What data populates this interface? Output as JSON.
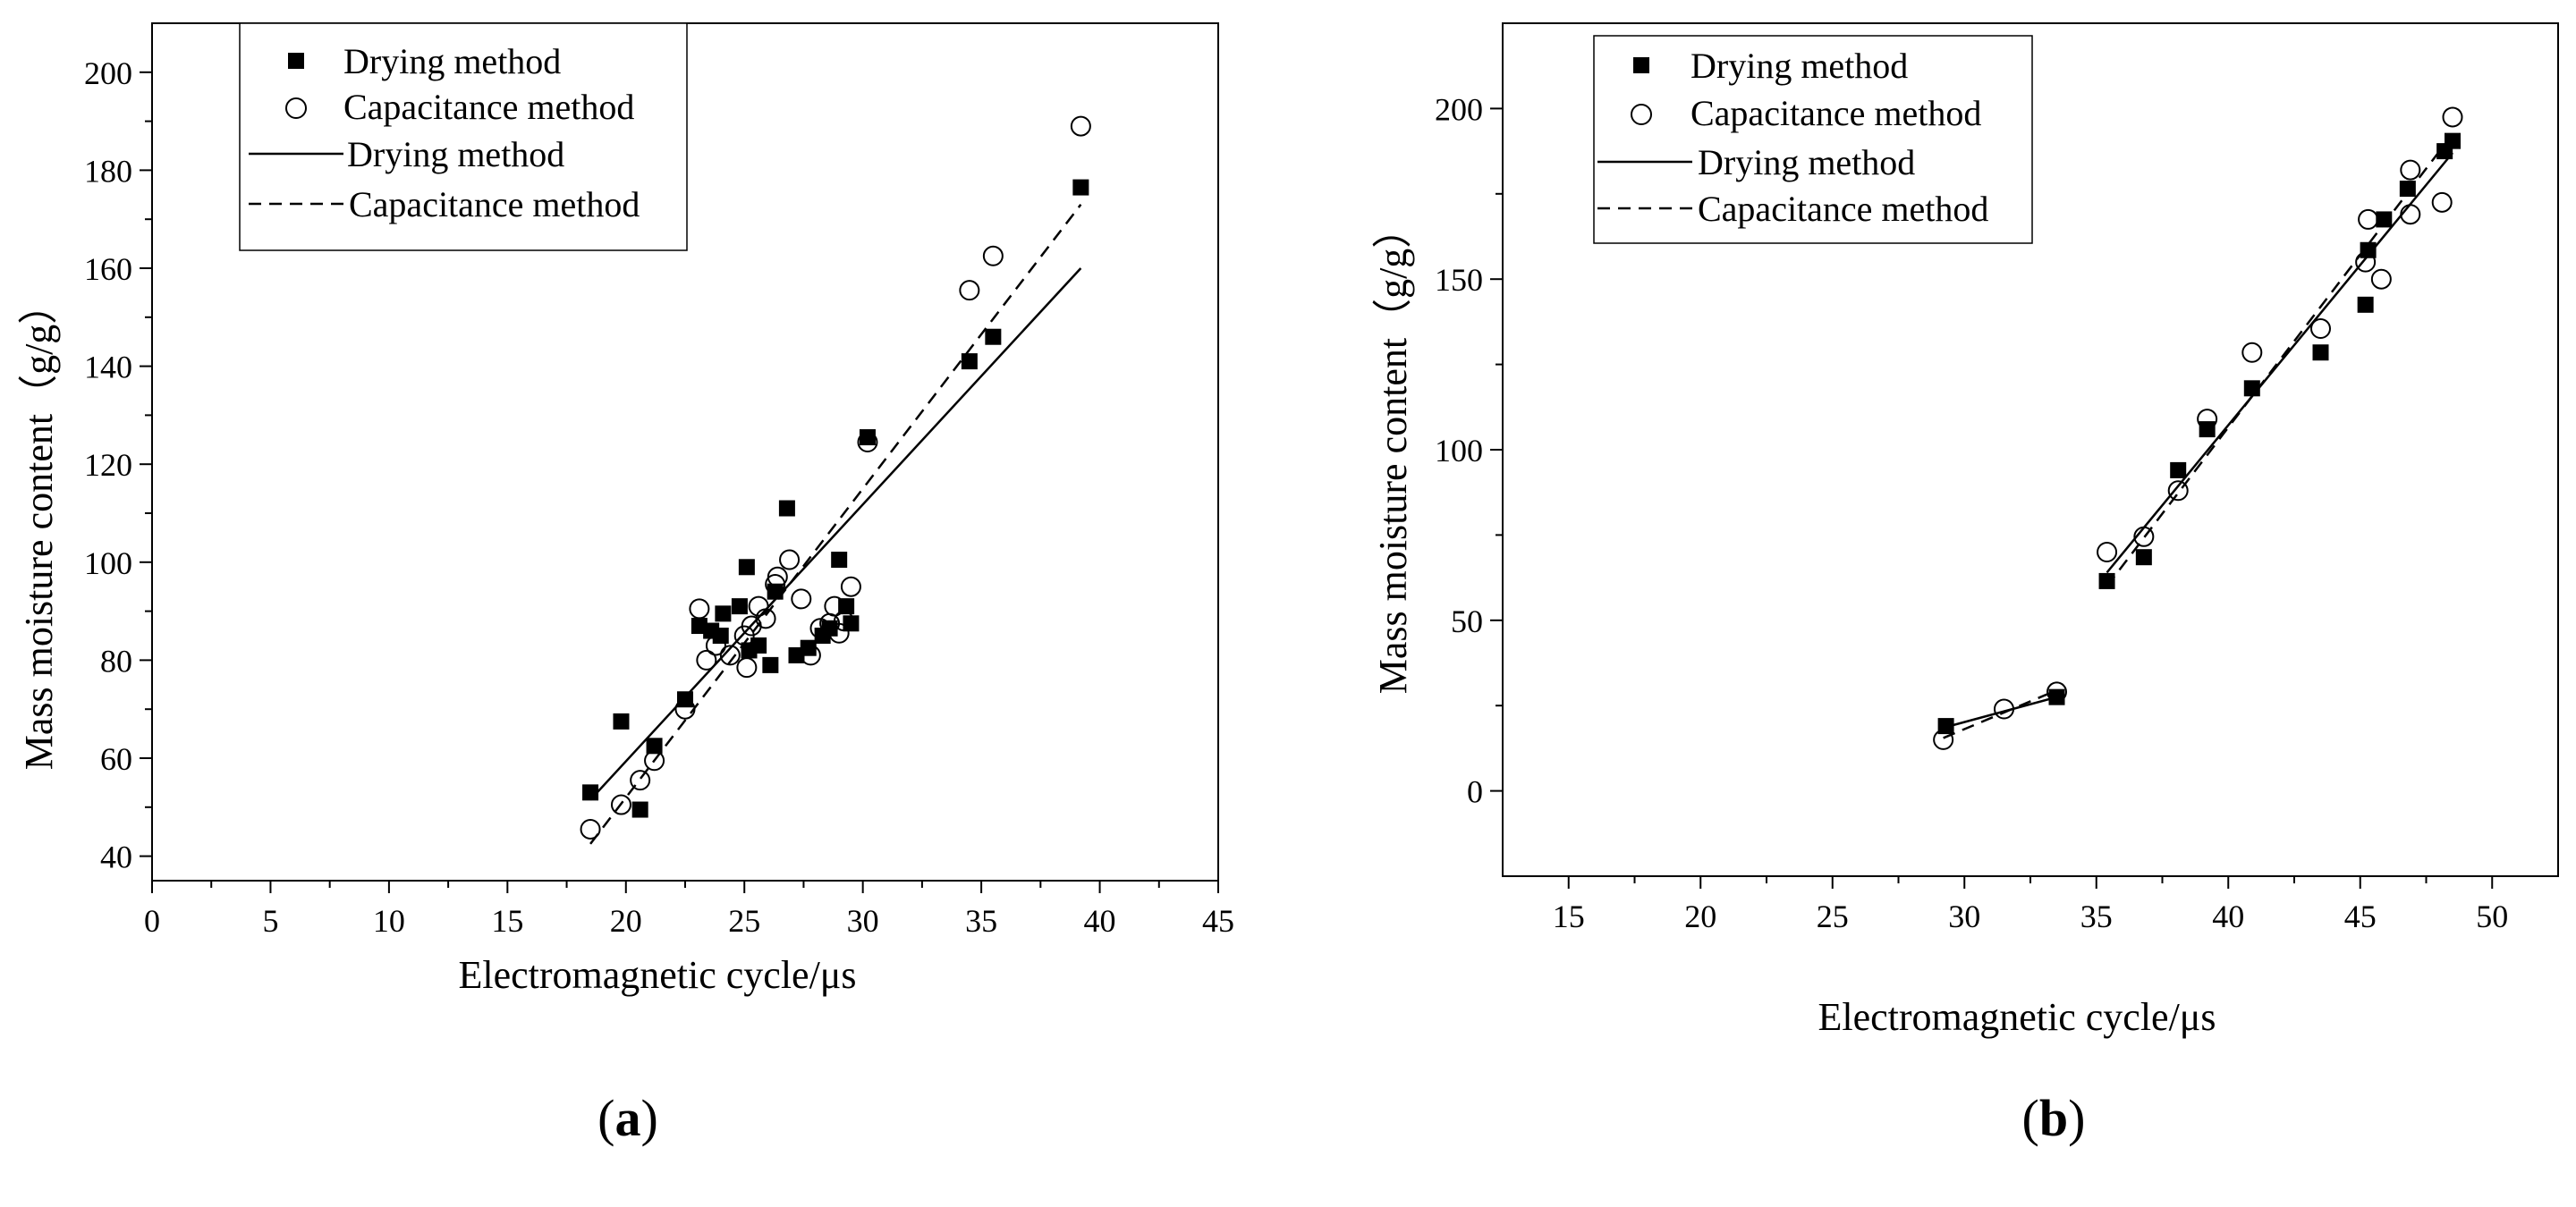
{
  "chart_data": [
    {
      "type": "scatter",
      "panel_label": "(a)",
      "panel_letter": "a",
      "xlabel": "Electromagnetic cycle/μs",
      "ylabel": "Mass moisture content（g/g）",
      "xlim": [
        0,
        45
      ],
      "ylim": [
        35,
        210
      ],
      "xticks": [
        0,
        5,
        10,
        15,
        20,
        25,
        30,
        35,
        40,
        45
      ],
      "yticks": [
        40,
        60,
        80,
        100,
        120,
        140,
        160,
        180,
        200
      ],
      "grid": false,
      "legend_position": "top-left",
      "legend": [
        {
          "label": "Drying method",
          "kind": "filled-square"
        },
        {
          "label": "Capacitance method",
          "kind": "open-circle"
        },
        {
          "label": "Drying method",
          "kind": "solid-line"
        },
        {
          "label": "Capacitance method",
          "kind": "dashed-line"
        }
      ],
      "series": [
        {
          "name": "Drying method",
          "kind": "filled-square",
          "points": [
            [
              18.5,
              53
            ],
            [
              19.8,
              67.5
            ],
            [
              20.6,
              49.5
            ],
            [
              21.2,
              62.5
            ],
            [
              22.5,
              72
            ],
            [
              23.1,
              87
            ],
            [
              23.6,
              86
            ],
            [
              24.0,
              85
            ],
            [
              24.1,
              89.5
            ],
            [
              24.8,
              91
            ],
            [
              25.1,
              99
            ],
            [
              25.2,
              82
            ],
            [
              25.6,
              83
            ],
            [
              26.1,
              79
            ],
            [
              26.3,
              94
            ],
            [
              26.8,
              111
            ],
            [
              27.2,
              81
            ],
            [
              27.7,
              82.5
            ],
            [
              28.3,
              85
            ],
            [
              28.6,
              86.5
            ],
            [
              29.0,
              100.5
            ],
            [
              29.3,
              91
            ],
            [
              29.5,
              87.5
            ],
            [
              30.2,
              125.5
            ],
            [
              34.5,
              141
            ],
            [
              35.5,
              146
            ],
            [
              39.2,
              176.5
            ]
          ]
        },
        {
          "name": "Capacitance method",
          "kind": "open-circle",
          "points": [
            [
              18.5,
              45.5
            ],
            [
              19.8,
              50.5
            ],
            [
              20.6,
              55.5
            ],
            [
              21.2,
              59.5
            ],
            [
              22.5,
              70
            ],
            [
              23.1,
              90.5
            ],
            [
              23.4,
              80
            ],
            [
              23.8,
              83
            ],
            [
              24.4,
              81
            ],
            [
              25.0,
              85
            ],
            [
              25.1,
              78.5
            ],
            [
              25.3,
              87
            ],
            [
              25.6,
              91
            ],
            [
              25.9,
              88.5
            ],
            [
              26.3,
              95.5
            ],
            [
              26.4,
              97
            ],
            [
              26.9,
              100.5
            ],
            [
              27.4,
              92.5
            ],
            [
              27.8,
              81
            ],
            [
              28.2,
              86.5
            ],
            [
              28.6,
              87.5
            ],
            [
              28.8,
              91
            ],
            [
              29.0,
              85.5
            ],
            [
              29.2,
              88
            ],
            [
              29.5,
              95
            ],
            [
              30.2,
              124.5
            ],
            [
              34.5,
              155.5
            ],
            [
              35.5,
              162.5
            ],
            [
              39.2,
              189
            ]
          ]
        },
        {
          "name": "Drying method",
          "kind": "solid-line",
          "points": [
            [
              18.5,
              51.5
            ],
            [
              39.2,
              160
            ]
          ]
        },
        {
          "name": "Capacitance method",
          "kind": "dashed-line",
          "points": [
            [
              18.5,
              42.5
            ],
            [
              39.2,
              173
            ]
          ]
        }
      ]
    },
    {
      "type": "scatter",
      "panel_label": "(b)",
      "panel_letter": "b",
      "xlabel": "Electromagnetic cycle/μs",
      "ylabel": "Mass moisture content（g/g）",
      "xlim": [
        12.5,
        52.5
      ],
      "ylim": [
        -25,
        225
      ],
      "xticks": [
        15,
        20,
        25,
        30,
        35,
        40,
        45,
        50
      ],
      "yticks": [
        0,
        50,
        100,
        150,
        200
      ],
      "grid": false,
      "legend_position": "top-left",
      "legend": [
        {
          "label": "Drying method",
          "kind": "filled-square"
        },
        {
          "label": "Capacitance method",
          "kind": "open-circle"
        },
        {
          "label": "Drying method",
          "kind": "solid-line"
        },
        {
          "label": "Capacitance method",
          "kind": "dashed-line"
        }
      ],
      "series": [
        {
          "name": "Drying method",
          "kind": "filled-square",
          "points": [
            [
              29.3,
              19
            ],
            [
              33.5,
              27.5
            ],
            [
              35.4,
              61.5
            ],
            [
              36.8,
              68.5
            ],
            [
              38.1,
              94
            ],
            [
              39.2,
              106
            ],
            [
              40.9,
              118
            ],
            [
              43.5,
              128.5
            ],
            [
              45.2,
              142.5
            ],
            [
              45.3,
              158.5
            ],
            [
              45.9,
              167.5
            ],
            [
              46.8,
              176.5
            ],
            [
              48.2,
              187.5
            ],
            [
              48.5,
              190.5
            ]
          ]
        },
        {
          "name": "Capacitance method",
          "kind": "open-circle",
          "points": [
            [
              29.2,
              15
            ],
            [
              31.5,
              24
            ],
            [
              33.5,
              29
            ],
            [
              35.4,
              70
            ],
            [
              36.8,
              74.5
            ],
            [
              38.1,
              88
            ],
            [
              39.2,
              109
            ],
            [
              40.9,
              128.5
            ],
            [
              43.5,
              135.5
            ],
            [
              45.2,
              155
            ],
            [
              45.3,
              167.5
            ],
            [
              45.8,
              150
            ],
            [
              46.9,
              182
            ],
            [
              46.9,
              169
            ],
            [
              48.1,
              172.5
            ],
            [
              48.5,
              197.5
            ]
          ]
        },
        {
          "name": "Drying method",
          "kind": "solid-line",
          "points": [
            [
              29.2,
              18.5
            ],
            [
              33.5,
              27.5
            ],
            null,
            [
              35.4,
              64
            ],
            [
              48.5,
              187
            ]
          ]
        },
        {
          "name": "Capacitance method",
          "kind": "dashed-line",
          "points": [
            [
              29.2,
              15.5
            ],
            [
              33.5,
              29.5
            ],
            null,
            [
              35.4,
              60
            ],
            [
              48.5,
              192.5
            ]
          ]
        }
      ]
    }
  ]
}
